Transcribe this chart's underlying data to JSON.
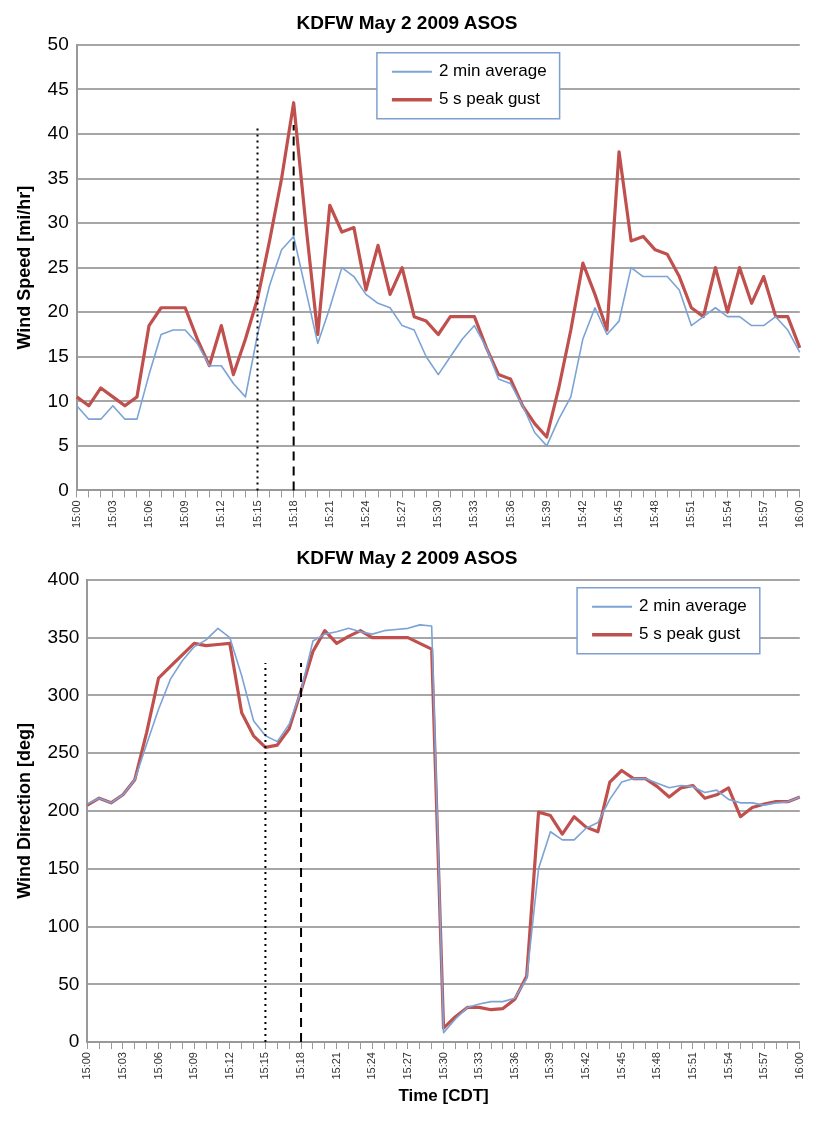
{
  "chart_data": [
    {
      "type": "line",
      "title": "KDFW May 2 2009 ASOS",
      "ylabel": "Wind Speed [mi/hr]",
      "categories": [
        "15:00",
        null,
        null,
        "15:03",
        null,
        null,
        "15:06",
        null,
        null,
        "15:09",
        null,
        null,
        "15:12",
        null,
        null,
        "15:15",
        null,
        null,
        "15:18",
        null,
        null,
        "15:21",
        null,
        null,
        "15:24",
        null,
        null,
        "15:27",
        null,
        null,
        "15:30",
        null,
        null,
        "15:33",
        null,
        null,
        "15:36",
        null,
        null,
        "15:39",
        null,
        null,
        "15:42",
        null,
        null,
        "15:45",
        null,
        null,
        "15:48",
        null,
        null,
        "15:51",
        null,
        null,
        "15:54",
        null,
        null,
        "15:57",
        null,
        null,
        "16:00"
      ],
      "series": [
        {
          "name": "2 min average",
          "color": "#7ba3d6",
          "values": [
            9.5,
            8,
            8,
            9.5,
            8,
            8,
            13,
            17.5,
            18,
            18,
            16.5,
            14,
            14,
            12,
            10.5,
            17.5,
            23,
            27,
            28.5,
            22.5,
            16.5,
            20.5,
            25,
            24,
            22,
            21,
            20.5,
            18.5,
            18,
            15,
            13,
            15,
            17,
            18.5,
            16,
            12.5,
            12,
            9.5,
            6.5,
            5,
            8,
            10.5,
            17,
            20.5,
            17.5,
            19,
            25,
            24,
            24,
            24,
            22.5,
            18.5,
            19.5,
            20.5,
            19.5,
            19.5,
            18.5,
            18.5,
            19.5,
            18,
            15.5
          ]
        },
        {
          "name": "5 s peak gust",
          "color": "#c0504d",
          "values": [
            10.5,
            9.5,
            11.5,
            10.5,
            9.5,
            10.5,
            18.5,
            20.5,
            20.5,
            20.5,
            17,
            14,
            18.5,
            13,
            17,
            21.5,
            28,
            35,
            43.5,
            30,
            17.5,
            32,
            29,
            29.5,
            22.5,
            27.5,
            22,
            25,
            19.5,
            19,
            17.5,
            19.5,
            19.5,
            19.5,
            16,
            13,
            12.5,
            9.5,
            7.5,
            6,
            11.5,
            18,
            25.5,
            22,
            18,
            38,
            28,
            28.5,
            27,
            26.5,
            24,
            20.5,
            19.5,
            25,
            20,
            25,
            21,
            24,
            19.5,
            19.5,
            16
          ]
        }
      ],
      "ylim": [
        0,
        50
      ],
      "yticks": [
        0,
        5,
        10,
        15,
        20,
        25,
        30,
        35,
        40,
        45,
        50
      ],
      "grid": "y",
      "legend": "top",
      "marker": "none",
      "ref_lines": [
        {
          "axis": "x",
          "value": "15:15",
          "line_style": "dotted",
          "color": "#000000"
        },
        {
          "axis": "x",
          "value": "15:18",
          "line_style": "dashed",
          "color": "#000000"
        }
      ]
    },
    {
      "type": "line",
      "title": "KDFW May 2 2009 ASOS",
      "ylabel": "Wind Direction [deg]",
      "xlabel": "Time [CDT]",
      "categories": [
        "15:00",
        null,
        null,
        "15:03",
        null,
        null,
        "15:06",
        null,
        null,
        "15:09",
        null,
        null,
        "15:12",
        null,
        null,
        "15:15",
        null,
        null,
        "15:18",
        null,
        null,
        "15:21",
        null,
        null,
        "15:24",
        null,
        null,
        "15:27",
        null,
        null,
        "15:30",
        null,
        null,
        "15:33",
        null,
        null,
        "15:36",
        null,
        null,
        "15:39",
        null,
        null,
        "15:42",
        null,
        null,
        "15:45",
        null,
        null,
        "15:48",
        null,
        null,
        "15:51",
        null,
        null,
        "15:54",
        null,
        null,
        "15:57",
        null,
        null,
        "16:00"
      ],
      "series": [
        {
          "name": "2 min average",
          "color": "#7ba3d6",
          "values": [
            206,
            211,
            207,
            214,
            227,
            258,
            288,
            314,
            330,
            342,
            348,
            358,
            350,
            317,
            278,
            265,
            260,
            275,
            304,
            347,
            353,
            355,
            358,
            355,
            353,
            356,
            357,
            358,
            361,
            360,
            8,
            20,
            30,
            33,
            35,
            35,
            38,
            55,
            150,
            182,
            175,
            175,
            185,
            190,
            210,
            225,
            228,
            228,
            224,
            220,
            222,
            221,
            216,
            218,
            210,
            207,
            207,
            205,
            207,
            208,
            212
          ]
        },
        {
          "name": "5 s peak gust",
          "color": "#c0504d",
          "values": [
            205,
            211,
            207,
            214,
            227,
            268,
            315,
            325,
            335,
            345,
            343,
            344,
            345,
            285,
            265,
            255,
            257,
            271,
            304,
            338,
            356,
            345,
            351,
            356,
            350,
            350,
            350,
            350,
            345,
            340,
            12,
            22,
            30,
            30,
            28,
            29,
            37,
            57,
            199,
            196,
            180,
            195,
            186,
            182,
            225,
            235,
            228,
            228,
            221,
            212,
            220,
            222,
            211,
            214,
            220,
            195,
            203,
            206,
            208,
            208,
            212
          ]
        }
      ],
      "ylim": [
        0,
        400
      ],
      "yticks": [
        0,
        50,
        100,
        150,
        200,
        250,
        300,
        350,
        400
      ],
      "grid": "y",
      "legend": "top right",
      "marker": "none",
      "ref_lines": [
        {
          "axis": "x",
          "value": "15:15",
          "line_style": "dotted",
          "color": "#000000"
        },
        {
          "axis": "x",
          "value": "15:18",
          "line_style": "dashed",
          "color": "#000000"
        }
      ]
    }
  ]
}
